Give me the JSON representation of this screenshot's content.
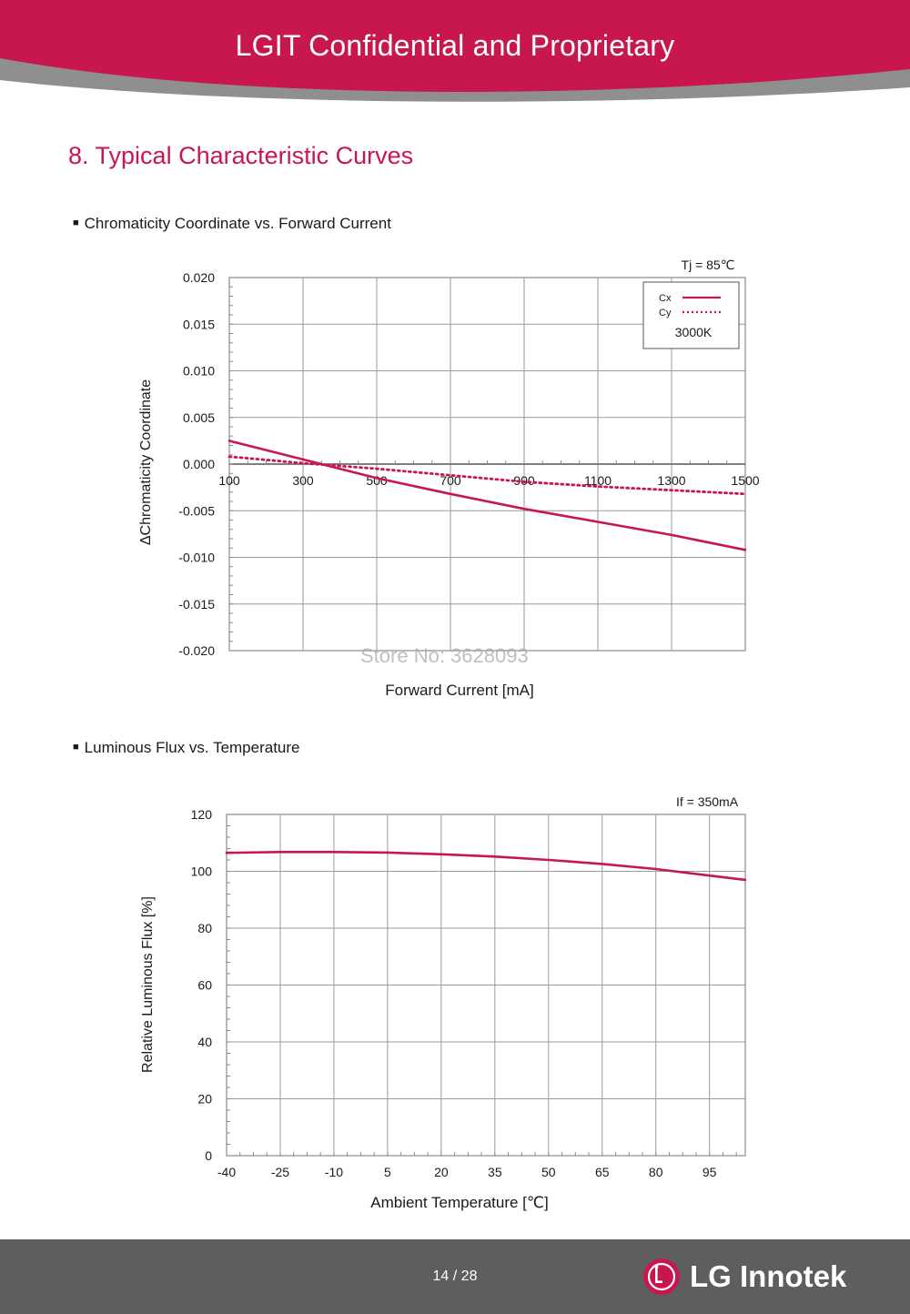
{
  "header": {
    "title": "LGIT Confidential and Proprietary"
  },
  "section_title": "8. Typical Characteristic Curves",
  "watermark": "Store No: 3628093",
  "footer": {
    "page": "14 / 28",
    "brand": "LG Innotek"
  },
  "colors": {
    "accent": "#c8174f",
    "footer": "#5e5e5e",
    "grid": "#9a9a9a"
  },
  "chart_data": [
    {
      "type": "line",
      "title": "Chromaticity Coordinate vs. Forward Current",
      "xlabel": "Forward Current [mA]",
      "ylabel": "ΔChromaticity Coordinate",
      "condition": "Tj = 85℃",
      "legend_note": "3000K",
      "legend_placement": "top-right",
      "grid": true,
      "xlim": [
        100,
        1500
      ],
      "ylim": [
        -0.02,
        0.02
      ],
      "x_ticks": [
        "100",
        "300",
        "500",
        "700",
        "900",
        "1100",
        "1300",
        "1500"
      ],
      "y_ticks": [
        "0.020",
        "0.015",
        "0.010",
        "0.005",
        "0.000",
        "-0.005",
        "-0.010",
        "-0.015",
        "-0.020"
      ],
      "series": [
        {
          "name": "Cx",
          "style": "solid",
          "color": "#c8174f",
          "x": [
            100,
            300,
            500,
            700,
            900,
            1100,
            1300,
            1500
          ],
          "y": [
            0.0025,
            0.0005,
            -0.0015,
            -0.0032,
            -0.0048,
            -0.0062,
            -0.0076,
            -0.0092
          ]
        },
        {
          "name": "Cy",
          "style": "dotted",
          "color": "#c8174f",
          "x": [
            100,
            300,
            500,
            700,
            900,
            1100,
            1300,
            1500
          ],
          "y": [
            0.0008,
            0.0001,
            -0.0005,
            -0.0012,
            -0.0019,
            -0.0024,
            -0.0028,
            -0.0032
          ]
        }
      ]
    },
    {
      "type": "line",
      "title": "Luminous Flux vs. Temperature",
      "xlabel": "Ambient Temperature [℃]",
      "ylabel": "Relative Luminous Flux [%]",
      "condition": "If = 350mA",
      "grid": true,
      "xlim": [
        -40,
        105
      ],
      "ylim": [
        0,
        120
      ],
      "x_ticks": [
        "-40",
        "-25",
        "-10",
        "5",
        "20",
        "35",
        "50",
        "65",
        "80",
        "95"
      ],
      "y_ticks": [
        "120",
        "100",
        "80",
        "60",
        "40",
        "20",
        "0"
      ],
      "series": [
        {
          "name": "",
          "style": "solid",
          "color": "#c8174f",
          "x": [
            -40,
            -25,
            -10,
            5,
            20,
            35,
            50,
            65,
            80,
            95,
            105
          ],
          "y": [
            106.5,
            106.8,
            106.8,
            106.6,
            106,
            105.2,
            104,
            102.6,
            100.8,
            98.5,
            97
          ]
        }
      ]
    }
  ]
}
